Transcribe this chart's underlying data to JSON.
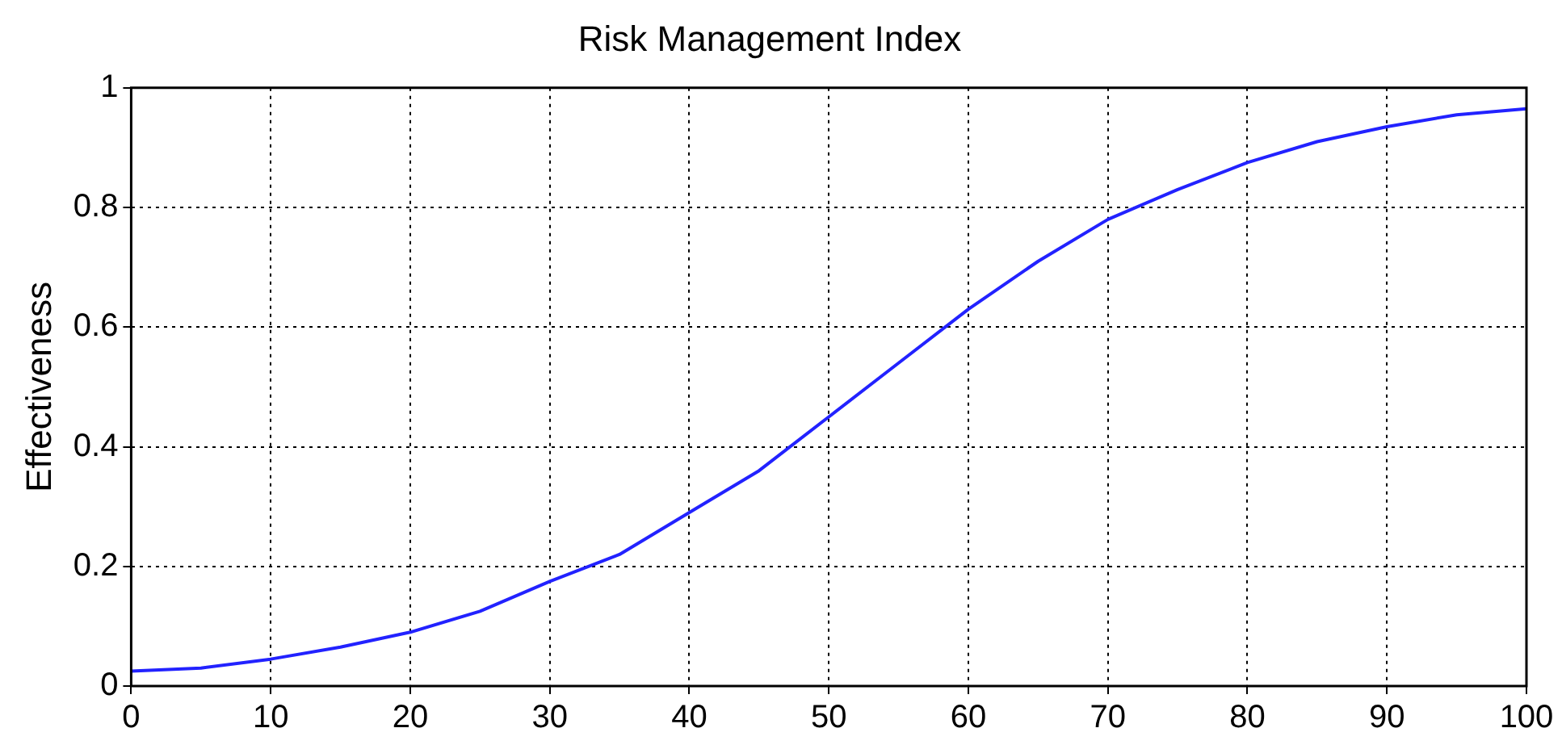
{
  "chart_data": {
    "type": "line",
    "title": "Risk Management Index",
    "ylabel": "Effectiveness",
    "x": [
      0,
      5,
      10,
      15,
      20,
      25,
      30,
      35,
      40,
      45,
      50,
      55,
      60,
      65,
      70,
      75,
      80,
      85,
      90,
      95,
      100
    ],
    "series": [
      {
        "color": "#2222ff",
        "values": [
          0.025,
          0.03,
          0.045,
          0.065,
          0.09,
          0.125,
          0.175,
          0.22,
          0.29,
          0.36,
          0.45,
          0.54,
          0.63,
          0.71,
          0.78,
          0.83,
          0.875,
          0.91,
          0.935,
          0.955,
          0.965
        ]
      }
    ],
    "xlim": [
      0,
      100
    ],
    "xticks": [
      0,
      10,
      20,
      30,
      40,
      50,
      60,
      70,
      80,
      90,
      100
    ],
    "ylim": [
      0,
      1
    ],
    "yticks": [
      0,
      0.2,
      0.4,
      0.6,
      0.8,
      1
    ],
    "grid": true,
    "marker": "none",
    "line_style": "solid"
  }
}
